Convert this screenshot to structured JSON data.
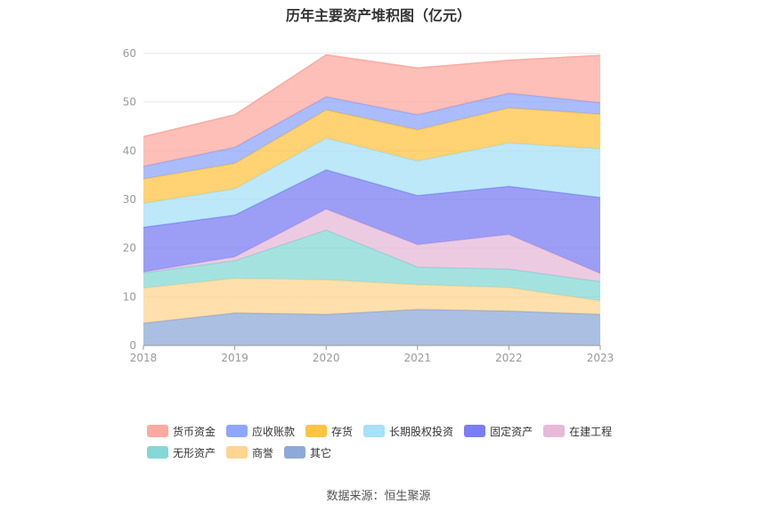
{
  "chart_data": {
    "type": "area",
    "title": "历年主要资产堆积图（亿元）",
    "x": [
      "2018",
      "2019",
      "2020",
      "2021",
      "2022",
      "2023"
    ],
    "ylim": [
      0,
      60
    ],
    "yticks": [
      0,
      10,
      20,
      30,
      40,
      50,
      60
    ],
    "grid": true,
    "legend_position": "bottom",
    "stacked": true,
    "series": [
      {
        "name": "其它",
        "color": "#8ea9d8",
        "values": [
          4.6,
          6.7,
          6.4,
          7.4,
          7.1,
          6.4
        ]
      },
      {
        "name": "商誉",
        "color": "#ffd591",
        "values": [
          7.2,
          7.1,
          7.1,
          5.1,
          4.8,
          2.8
        ]
      },
      {
        "name": "无形资产",
        "color": "#85d8d5",
        "values": [
          3.1,
          3.6,
          10.2,
          3.6,
          3.8,
          3.9
        ]
      },
      {
        "name": "在建工程",
        "color": "#e6b9d8",
        "values": [
          0.2,
          0.8,
          4.3,
          4.6,
          7.1,
          1.7
        ]
      },
      {
        "name": "固定资产",
        "color": "#7b7ef1",
        "values": [
          9.2,
          8.6,
          8.1,
          10.1,
          9.9,
          15.6
        ]
      },
      {
        "name": "长期股权投资",
        "color": "#a7e0f8",
        "values": [
          4.9,
          5.4,
          6.5,
          7.1,
          8.9,
          10.0
        ]
      },
      {
        "name": "存货",
        "color": "#ffc444",
        "values": [
          5.0,
          5.2,
          5.8,
          6.4,
          7.2,
          7.1
        ]
      },
      {
        "name": "应收账款",
        "color": "#8ea6fb",
        "values": [
          2.6,
          3.3,
          2.7,
          3.1,
          3.0,
          2.4
        ]
      },
      {
        "name": "货币资金",
        "color": "#fda9a0",
        "values": [
          6.1,
          6.7,
          8.6,
          9.6,
          6.8,
          9.7
        ]
      }
    ]
  },
  "legend": {
    "row1": [
      "货币资金",
      "应收账款",
      "存货",
      "长期股权投资",
      "固定资产",
      "在建工程"
    ],
    "row2": [
      "无形资产",
      "商誉",
      "其它"
    ]
  },
  "source_text": "数据来源：恒生聚源"
}
